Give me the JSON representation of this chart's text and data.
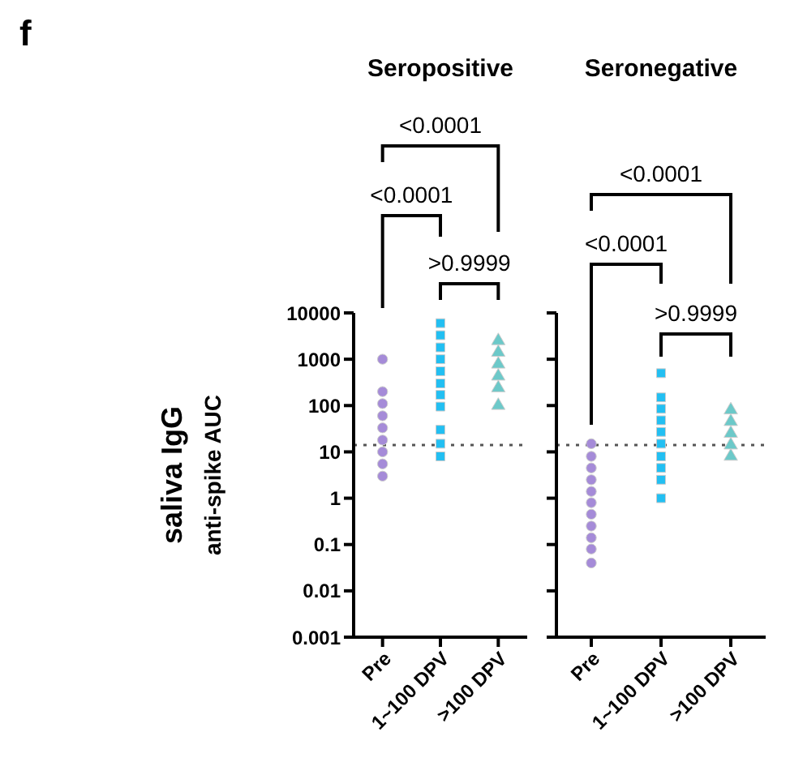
{
  "chart_data": [
    {
      "type": "scatter",
      "title": "Seropositive",
      "ylabel": "saliva IgG\nanti-spike AUC",
      "categories": [
        "Pre",
        "1~100 DPV",
        ">100 DPV"
      ],
      "log": "y",
      "ylim": [
        0.001,
        10000
      ],
      "yticks": [
        0.001,
        0.01,
        0.1,
        1,
        10,
        100,
        1000,
        10000
      ],
      "annotations": [
        "f",
        "<0.0001",
        "<0.0001",
        ">0.9999"
      ],
      "ref_lines": [
        {
          "axis": "y",
          "value": 14,
          "color": "#555555",
          "line_style": "dotted"
        }
      ],
      "series": [
        {
          "color": "#a58bd8",
          "marker": "circle",
          "x": [
            "Pre",
            "Pre",
            "Pre",
            "Pre",
            "Pre",
            "Pre",
            "Pre",
            "Pre",
            "Pre"
          ],
          "values": [
            1000,
            200,
            110,
            60,
            33,
            18,
            10,
            5.5,
            3
          ]
        },
        {
          "color": "#22bff2",
          "marker": "square",
          "x": [
            "1~100 DPV",
            "1~100 DPV",
            "1~100 DPV",
            "1~100 DPV",
            "1~100 DPV",
            "1~100 DPV",
            "1~100 DPV",
            "1~100 DPV",
            "1~100 DPV",
            "1~100 DPV",
            "1~100 DPV"
          ],
          "values": [
            6000,
            3300,
            1800,
            1000,
            550,
            300,
            170,
            95,
            30,
            15,
            8
          ]
        },
        {
          "color": "#6cc9c9",
          "marker": "triangle",
          "x": [
            ">100 DPV",
            ">100 DPV",
            ">100 DPV",
            ">100 DPV",
            ">100 DPV",
            ">100 DPV"
          ],
          "values": [
            2500,
            1400,
            780,
            430,
            240,
            100
          ]
        }
      ]
    },
    {
      "type": "scatter",
      "title": "Seronegative",
      "categories": [
        "Pre",
        "1~100 DPV",
        ">100 DPV"
      ],
      "log": "y",
      "ylim": [
        0.001,
        10000
      ],
      "yticks": [
        0.001,
        0.01,
        0.1,
        1,
        10,
        100,
        1000,
        10000
      ],
      "tick_labels": "x",
      "annotations": [
        "<0.0001",
        "<0.0001",
        ">0.9999"
      ],
      "ref_lines": [
        {
          "axis": "y",
          "value": 14,
          "color": "#555555",
          "line_style": "dotted"
        }
      ],
      "series": [
        {
          "color": "#a58bd8",
          "marker": "circle",
          "x": [
            "Pre",
            "Pre",
            "Pre",
            "Pre",
            "Pre",
            "Pre",
            "Pre",
            "Pre",
            "Pre",
            "Pre",
            "Pre"
          ],
          "values": [
            15,
            8,
            4.5,
            2.5,
            1.4,
            0.8,
            0.45,
            0.25,
            0.14,
            0.08,
            0.04
          ]
        },
        {
          "color": "#22bff2",
          "marker": "square",
          "x": [
            "1~100 DPV",
            "1~100 DPV",
            "1~100 DPV",
            "1~100 DPV",
            "1~100 DPV",
            "1~100 DPV",
            "1~100 DPV",
            "1~100 DPV",
            "1~100 DPV",
            "1~100 DPV"
          ],
          "values": [
            500,
            150,
            85,
            48,
            27,
            15,
            8,
            4.5,
            2.5,
            1
          ]
        },
        {
          "color": "#6cc9c9",
          "marker": "triangle",
          "x": [
            ">100 DPV",
            ">100 DPV",
            ">100 DPV",
            ">100 DPV",
            ">100 DPV"
          ],
          "values": [
            80,
            45,
            25,
            14,
            8
          ]
        }
      ]
    }
  ]
}
